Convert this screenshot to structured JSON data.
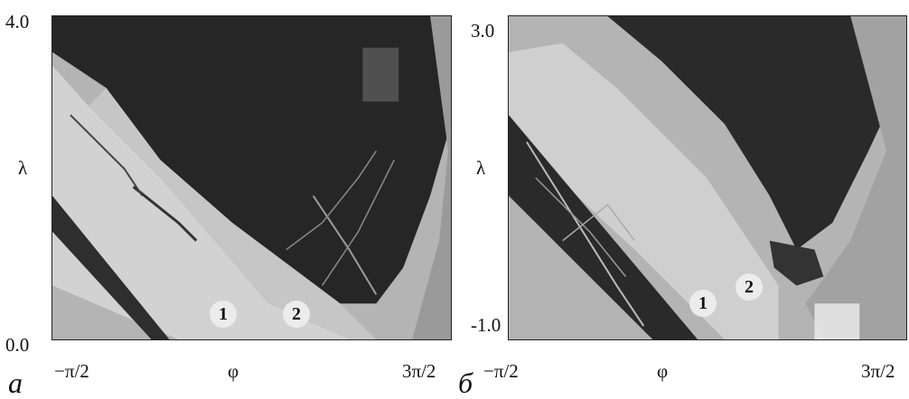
{
  "panels": [
    {
      "id": "a",
      "sublabel": "a",
      "y_top": "4.0",
      "y_bottom": "0.0",
      "y_label": "λ",
      "x_left": "−π/2",
      "x_mid": "φ",
      "x_right": "3π/2",
      "region_labels": [
        "1",
        "2"
      ]
    },
    {
      "id": "b",
      "sublabel": "б",
      "y_top": "3.0",
      "y_bottom": "-1.0",
      "y_label": "λ",
      "x_left": "−π/2",
      "x_mid": "φ",
      "x_right": "3π/2",
      "region_labels": [
        "1",
        "2"
      ]
    }
  ],
  "colors": {
    "dark": "#262626",
    "mid": "#a8a8a8",
    "light": "#c9c9c9",
    "lighter": "#dcdcdc"
  }
}
